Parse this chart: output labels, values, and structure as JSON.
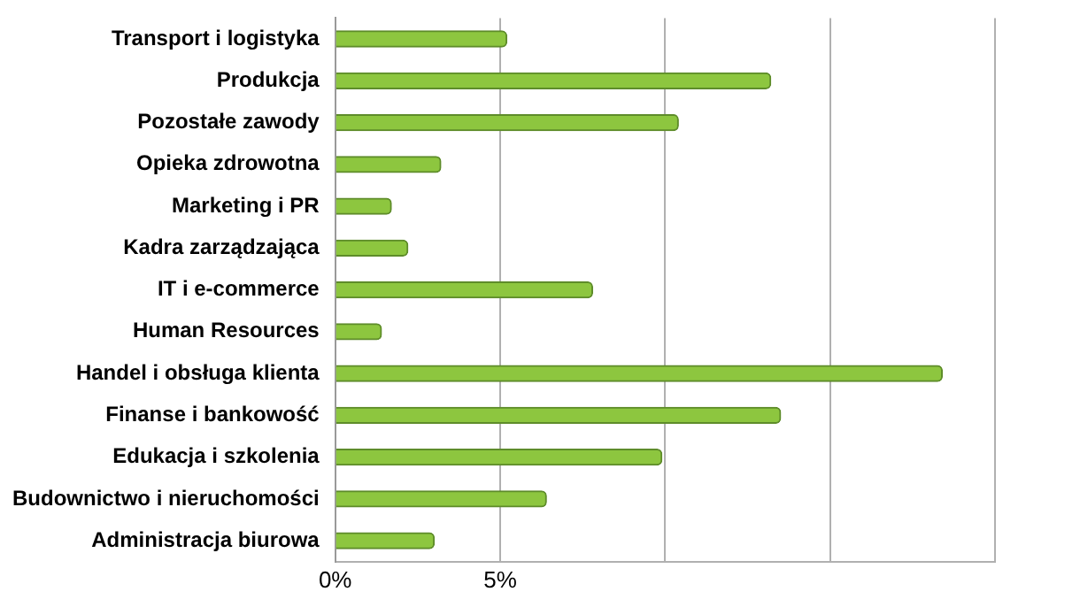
{
  "chart_data": {
    "type": "bar",
    "orientation": "horizontal",
    "categories": [
      "Transport i logistyka",
      "Produkcja",
      "Pozostałe zawody",
      "Opieka zdrowotna",
      "Marketing i PR",
      "Kadra zarządzająca",
      "IT i e-commerce",
      "Human Resources",
      "Handel i obsługa klienta",
      "Finanse i bankowość",
      "Edukacja i szkolenia",
      "Budownictwo i nieruchomości",
      "Administracja biurowa"
    ],
    "values": [
      5.2,
      13.2,
      10.4,
      3.2,
      1.7,
      2.2,
      7.8,
      1.4,
      18.4,
      13.5,
      9.9,
      6.4,
      3.0
    ],
    "color": "#8dc63f",
    "xlim": [
      0,
      20
    ],
    "xticks": [
      {
        "value": 0,
        "label": "0%"
      },
      {
        "value": 5,
        "label": "5%"
      },
      {
        "value": 10,
        "label": null
      },
      {
        "value": 15,
        "label": null
      },
      {
        "value": 20,
        "label": null
      }
    ],
    "grid": "x"
  }
}
